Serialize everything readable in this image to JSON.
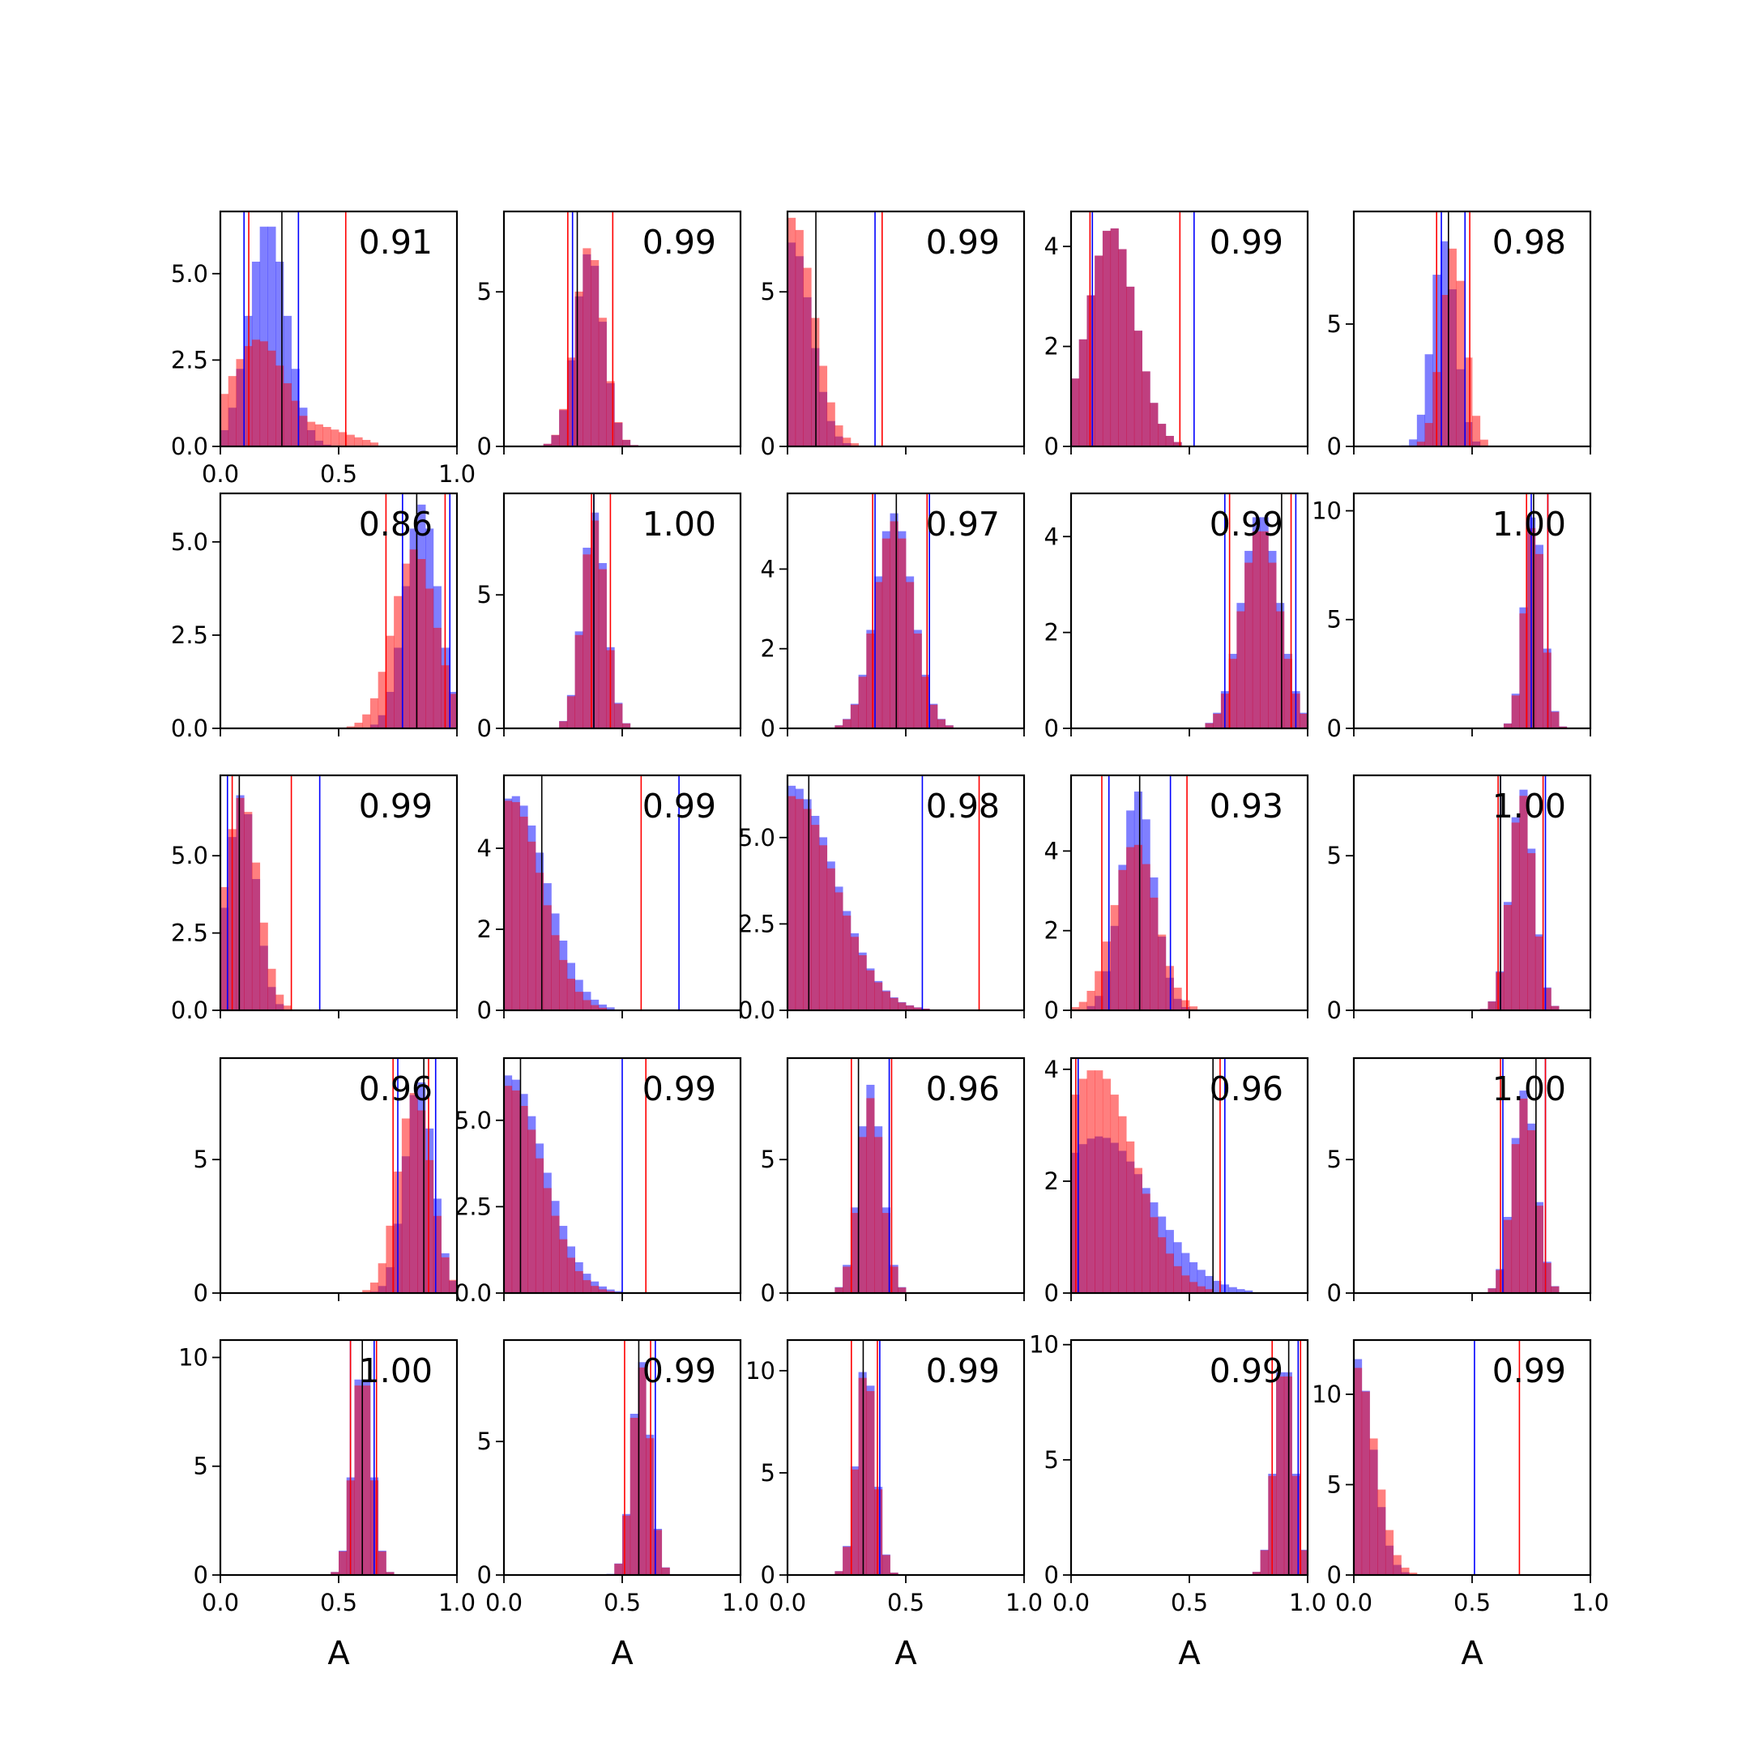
{
  "figure": {
    "rows": 5,
    "cols": 5,
    "xlabel": "A",
    "colors": {
      "blue": "#0000ff",
      "red": "#ff0000",
      "black": "#000000"
    }
  },
  "chart_data": [
    {
      "type": "histogram",
      "id": "r1c1",
      "score_label": "0.91",
      "xlim": [
        0,
        1
      ],
      "ylim": [
        0,
        6.8
      ],
      "yticks": [
        0,
        2.5,
        5
      ],
      "ytick_labels": [
        "0.0",
        "2.5",
        "5.0"
      ],
      "xtick_labels": [
        "0.0",
        "0.5",
        "1.0"
      ],
      "blue": {
        "peak": 0.2,
        "spread": 0.08,
        "height": 6.5
      },
      "red": {
        "peak": 0.16,
        "spread": 0.12,
        "height": 3.1
      },
      "red_tail": {
        "start": 0.3,
        "end": 0.7,
        "height": 0.9
      },
      "vlines": {
        "blue": [
          0.1,
          0.33
        ],
        "red": [
          0.12,
          0.53
        ],
        "black": [
          0.26
        ]
      }
    },
    {
      "type": "histogram",
      "id": "r1c2",
      "score_label": "0.99",
      "xlim": [
        0,
        1
      ],
      "ylim": [
        0,
        7.6
      ],
      "yticks": [
        0,
        5
      ],
      "ytick_labels": [
        "0",
        "5"
      ],
      "xtick_labels": [],
      "blue": {
        "peak": 0.36,
        "spread": 0.06,
        "height": 6.3
      },
      "red": {
        "peak": 0.36,
        "spread": 0.06,
        "height": 6.5
      },
      "vlines": {
        "blue": [
          0.29
        ],
        "red": [
          0.27,
          0.46
        ],
        "black": [
          0.31
        ]
      }
    },
    {
      "type": "histogram",
      "id": "r1c3",
      "score_label": "0.99",
      "xlim": [
        0,
        1
      ],
      "ylim": [
        0,
        7.6
      ],
      "yticks": [
        0,
        5
      ],
      "ytick_labels": [
        "0",
        "5"
      ],
      "xtick_labels": [],
      "blue": {
        "peak": 0.02,
        "spread": 0.08,
        "height": 6.6
      },
      "red": {
        "peak": 0.02,
        "spread": 0.09,
        "height": 7.4
      },
      "vlines": {
        "blue": [
          0.37
        ],
        "red": [
          0.4
        ],
        "black": [
          0.12
        ]
      }
    },
    {
      "type": "histogram",
      "id": "r1c4",
      "score_label": "0.99",
      "xlim": [
        0,
        1
      ],
      "ylim": [
        0,
        4.7
      ],
      "yticks": [
        0,
        2,
        4
      ],
      "ytick_labels": [
        "0",
        "2",
        "4"
      ],
      "xtick_labels": [],
      "blue": {
        "peak": 0.17,
        "spread": 0.1,
        "height": 4.4
      },
      "red": {
        "peak": 0.17,
        "spread": 0.1,
        "height": 4.4
      },
      "vlines": {
        "blue": [
          0.09,
          0.52
        ],
        "red": [
          0.08,
          0.46
        ],
        "black": []
      }
    },
    {
      "type": "histogram",
      "id": "r1c5",
      "score_label": "0.98",
      "xlim": [
        0,
        1
      ],
      "ylim": [
        0,
        9.6
      ],
      "yticks": [
        0,
        5
      ],
      "ytick_labels": [
        "0",
        "5"
      ],
      "xtick_labels": [],
      "blue": {
        "peak": 0.38,
        "spread": 0.05,
        "height": 8.4
      },
      "red": {
        "peak": 0.42,
        "spread": 0.05,
        "height": 8.1
      },
      "vlines": {
        "blue": [
          0.37,
          0.47
        ],
        "red": [
          0.35,
          0.49
        ],
        "black": [
          0.4
        ]
      }
    },
    {
      "type": "histogram",
      "id": "r2c1",
      "score_label": "0.86",
      "xlim": [
        0,
        1
      ],
      "ylim": [
        0,
        6.3
      ],
      "yticks": [
        0,
        2.5,
        5
      ],
      "ytick_labels": [
        "0.0",
        "2.5",
        "5.0"
      ],
      "xtick_labels": [],
      "blue": {
        "peak": 0.85,
        "spread": 0.07,
        "height": 6.0
      },
      "red": {
        "peak": 0.82,
        "spread": 0.09,
        "height": 4.8
      },
      "vlines": {
        "blue": [
          0.77,
          0.97
        ],
        "red": [
          0.7,
          0.95
        ],
        "black": [
          0.83
        ]
      }
    },
    {
      "type": "histogram",
      "id": "r2c2",
      "score_label": "1.00",
      "xlim": [
        0,
        1
      ],
      "ylim": [
        0,
        8.8
      ],
      "yticks": [
        0,
        5
      ],
      "ytick_labels": [
        "0",
        "5"
      ],
      "xtick_labels": [],
      "blue": {
        "peak": 0.38,
        "spread": 0.05,
        "height": 8.1
      },
      "red": {
        "peak": 0.38,
        "spread": 0.05,
        "height": 7.8
      },
      "vlines": {
        "blue": [
          0.38
        ],
        "red": [
          0.37,
          0.45
        ],
        "black": [
          0.38
        ]
      }
    },
    {
      "type": "histogram",
      "id": "r2c3",
      "score_label": "0.97",
      "xlim": [
        0,
        1
      ],
      "ylim": [
        0,
        5.9
      ],
      "yticks": [
        0,
        2,
        4
      ],
      "ytick_labels": [
        "0",
        "2",
        "4"
      ],
      "xtick_labels": [],
      "blue": {
        "peak": 0.45,
        "spread": 0.08,
        "height": 5.4
      },
      "red": {
        "peak": 0.45,
        "spread": 0.08,
        "height": 5.2
      },
      "vlines": {
        "blue": [
          0.37,
          0.6
        ],
        "red": [
          0.36,
          0.59
        ],
        "black": [
          0.46
        ]
      }
    },
    {
      "type": "histogram",
      "id": "r2c4",
      "score_label": "0.99",
      "xlim": [
        0,
        1
      ],
      "ylim": [
        0,
        4.9
      ],
      "yticks": [
        0,
        2,
        4
      ],
      "ytick_labels": [
        "0",
        "2",
        "4"
      ],
      "xtick_labels": [],
      "blue": {
        "peak": 0.8,
        "spread": 0.08,
        "height": 4.5
      },
      "red": {
        "peak": 0.8,
        "spread": 0.08,
        "height": 4.2
      },
      "vlines": {
        "blue": [
          0.65,
          0.95
        ],
        "red": [
          0.67,
          0.93
        ],
        "black": [
          0.89
        ]
      }
    },
    {
      "type": "histogram",
      "id": "r2c5",
      "score_label": "1.00",
      "xlim": [
        0,
        1
      ],
      "ylim": [
        0,
        10.8
      ],
      "yticks": [
        0,
        5,
        10
      ],
      "ytick_labels": [
        "0",
        "5",
        "10"
      ],
      "xtick_labels": [],
      "blue": {
        "peak": 0.76,
        "spread": 0.04,
        "height": 10.0
      },
      "red": {
        "peak": 0.76,
        "spread": 0.04,
        "height": 9.5
      },
      "vlines": {
        "blue": [
          0.75,
          0.82
        ],
        "red": [
          0.73,
          0.82
        ],
        "black": [
          0.76
        ]
      }
    },
    {
      "type": "histogram",
      "id": "r3c1",
      "score_label": "0.99",
      "xlim": [
        0,
        1
      ],
      "ylim": [
        0,
        7.6
      ],
      "yticks": [
        0,
        2.5,
        5
      ],
      "ytick_labels": [
        "0.0",
        "2.5",
        "5.0"
      ],
      "xtick_labels": [],
      "blue": {
        "peak": 0.09,
        "spread": 0.06,
        "height": 7.0
      },
      "red": {
        "peak": 0.09,
        "spread": 0.07,
        "height": 6.9
      },
      "vlines": {
        "blue": [
          0.03,
          0.42
        ],
        "red": [
          0.05,
          0.3
        ],
        "black": [
          0.08
        ]
      }
    },
    {
      "type": "histogram",
      "id": "r3c2",
      "score_label": "0.99",
      "xlim": [
        0,
        1
      ],
      "ylim": [
        0,
        5.8
      ],
      "yticks": [
        0,
        2,
        4
      ],
      "ytick_labels": [
        "0",
        "2",
        "4"
      ],
      "xtick_labels": [],
      "blue": {
        "peak": 0.04,
        "spread": 0.14,
        "height": 5.3
      },
      "red": {
        "peak": 0.03,
        "spread": 0.13,
        "height": 5.2
      },
      "vlines": {
        "blue": [
          0.74
        ],
        "red": [
          0.58
        ],
        "black": [
          0.16
        ]
      }
    },
    {
      "type": "histogram",
      "id": "r3c3",
      "score_label": "0.98",
      "xlim": [
        0,
        1
      ],
      "ylim": [
        0,
        6.8
      ],
      "yticks": [
        0,
        2.5,
        5
      ],
      "ytick_labels": [
        "0.0",
        "2.5",
        "5.0"
      ],
      "xtick_labels": [],
      "blue": {
        "peak": 0.02,
        "spread": 0.18,
        "height": 6.5
      },
      "red": {
        "peak": 0.02,
        "spread": 0.18,
        "height": 6.2
      },
      "vlines": {
        "blue": [
          0.57
        ],
        "red": [
          0.81
        ],
        "black": [
          0.09
        ]
      }
    },
    {
      "type": "histogram",
      "id": "r3c4",
      "score_label": "0.93",
      "xlim": [
        0,
        1
      ],
      "ylim": [
        0,
        5.9
      ],
      "yticks": [
        0,
        2,
        4
      ],
      "ytick_labels": [
        "0",
        "2",
        "4"
      ],
      "xtick_labels": [],
      "blue": {
        "peak": 0.28,
        "spread": 0.07,
        "height": 5.5
      },
      "red": {
        "peak": 0.27,
        "spread": 0.09,
        "height": 4.2
      },
      "vlines": {
        "blue": [
          0.16,
          0.42
        ],
        "red": [
          0.13,
          0.49
        ],
        "black": [
          0.29
        ]
      }
    },
    {
      "type": "histogram",
      "id": "r3c5",
      "score_label": "1.00",
      "xlim": [
        0,
        1
      ],
      "ylim": [
        0,
        7.6
      ],
      "yticks": [
        0,
        5
      ],
      "ytick_labels": [
        "0",
        "5"
      ],
      "xtick_labels": [],
      "blue": {
        "peak": 0.71,
        "spread": 0.05,
        "height": 7.2
      },
      "red": {
        "peak": 0.71,
        "spread": 0.05,
        "height": 7.0
      },
      "vlines": {
        "blue": [
          0.62,
          0.81
        ],
        "red": [
          0.61,
          0.8
        ],
        "black": [
          0.62
        ]
      }
    },
    {
      "type": "histogram",
      "id": "r4c1",
      "score_label": "0.96",
      "xlim": [
        0,
        1
      ],
      "ylim": [
        0,
        8.8
      ],
      "yticks": [
        0,
        5
      ],
      "ytick_labels": [
        "0",
        "5"
      ],
      "xtick_labels": [],
      "blue": {
        "peak": 0.84,
        "spread": 0.06,
        "height": 8.0
      },
      "red": {
        "peak": 0.82,
        "spread": 0.07,
        "height": 7.5
      },
      "vlines": {
        "blue": [
          0.75,
          0.91
        ],
        "red": [
          0.73,
          0.88
        ],
        "black": [
          0.86
        ]
      }
    },
    {
      "type": "histogram",
      "id": "r4c2",
      "score_label": "0.99",
      "xlim": [
        0,
        1
      ],
      "ylim": [
        0,
        6.8
      ],
      "yticks": [
        0,
        2.5,
        5
      ],
      "ytick_labels": [
        "0.0",
        "2.5",
        "5.0"
      ],
      "xtick_labels": [],
      "blue": {
        "peak": 0.02,
        "spread": 0.15,
        "height": 6.3
      },
      "red": {
        "peak": 0.02,
        "spread": 0.14,
        "height": 6.0
      },
      "vlines": {
        "blue": [
          0.5
        ],
        "red": [
          0.6
        ],
        "black": [
          0.07
        ]
      }
    },
    {
      "type": "histogram",
      "id": "r4c3",
      "score_label": "0.96",
      "xlim": [
        0,
        1
      ],
      "ylim": [
        0,
        8.8
      ],
      "yticks": [
        0,
        5
      ],
      "ytick_labels": [
        "0",
        "5"
      ],
      "xtick_labels": [],
      "blue": {
        "peak": 0.35,
        "spread": 0.05,
        "height": 7.8
      },
      "red": {
        "peak": 0.35,
        "spread": 0.05,
        "height": 7.3
      },
      "vlines": {
        "blue": [
          0.43
        ],
        "red": [
          0.27,
          0.44
        ],
        "black": [
          0.3
        ]
      }
    },
    {
      "type": "histogram",
      "id": "r4c4",
      "score_label": "0.96",
      "xlim": [
        0,
        1
      ],
      "ylim": [
        0,
        4.2
      ],
      "yticks": [
        0,
        2,
        4
      ],
      "ytick_labels": [
        "0",
        "2",
        "4"
      ],
      "xtick_labels": [],
      "blue": {
        "peak": 0.12,
        "spread": 0.22,
        "height": 2.8
      },
      "red": {
        "peak": 0.1,
        "spread": 0.17,
        "height": 4.0
      },
      "vlines": {
        "blue": [
          0.03,
          0.65
        ],
        "red": [
          0.02,
          0.63
        ],
        "black": [
          0.6
        ]
      }
    },
    {
      "type": "histogram",
      "id": "r4c5",
      "score_label": "1.00",
      "xlim": [
        0,
        1
      ],
      "ylim": [
        0,
        8.8
      ],
      "yticks": [
        0,
        5
      ],
      "ytick_labels": [
        "0",
        "5"
      ],
      "xtick_labels": [],
      "blue": {
        "peak": 0.72,
        "spread": 0.05,
        "height": 7.6
      },
      "red": {
        "peak": 0.72,
        "spread": 0.05,
        "height": 7.3
      },
      "vlines": {
        "blue": [
          0.63,
          0.81
        ],
        "red": [
          0.62,
          0.81
        ],
        "black": [
          0.77
        ]
      }
    },
    {
      "type": "histogram",
      "id": "r5c1",
      "score_label": "1.00",
      "xlim": [
        0,
        1
      ],
      "ylim": [
        0,
        10.8
      ],
      "yticks": [
        0,
        5,
        10
      ],
      "ytick_labels": [
        "0",
        "5",
        "10"
      ],
      "xtick_labels": [
        "0.0",
        "0.5",
        "1.0"
      ],
      "blue": {
        "peak": 0.6,
        "spread": 0.04,
        "height": 9.8
      },
      "red": {
        "peak": 0.6,
        "spread": 0.04,
        "height": 9.5
      },
      "vlines": {
        "blue": [
          0.55,
          0.65
        ],
        "red": [
          0.55,
          0.66
        ],
        "black": [
          0.6
        ]
      }
    },
    {
      "type": "histogram",
      "id": "r5c2",
      "score_label": "0.99",
      "xlim": [
        0,
        1
      ],
      "ylim": [
        0,
        8.8
      ],
      "yticks": [
        0,
        5
      ],
      "ytick_labels": [
        "0",
        "5"
      ],
      "xtick_labels": [
        "0.0",
        "0.5",
        "1.0"
      ],
      "blue": {
        "peak": 0.58,
        "spread": 0.04,
        "height": 8.0
      },
      "red": {
        "peak": 0.58,
        "spread": 0.04,
        "height": 7.8
      },
      "vlines": {
        "blue": [
          0.64
        ],
        "red": [
          0.51,
          0.62
        ],
        "black": [
          0.57
        ]
      }
    },
    {
      "type": "histogram",
      "id": "r5c3",
      "score_label": "0.99",
      "xlim": [
        0,
        1
      ],
      "ylim": [
        0,
        11.5
      ],
      "yticks": [
        0,
        5,
        10
      ],
      "ytick_labels": [
        "0",
        "5",
        "10"
      ],
      "xtick_labels": [
        "0.0",
        "0.5",
        "1.0"
      ],
      "blue": {
        "peak": 0.33,
        "spread": 0.04,
        "height": 10.5
      },
      "red": {
        "peak": 0.33,
        "spread": 0.04,
        "height": 10.2
      },
      "vlines": {
        "blue": [
          0.39
        ],
        "red": [
          0.27,
          0.38
        ],
        "black": [
          0.32
        ]
      }
    },
    {
      "type": "histogram",
      "id": "r5c4",
      "score_label": "0.99",
      "xlim": [
        0,
        1
      ],
      "ylim": [
        0,
        10.2
      ],
      "yticks": [
        0,
        5,
        10
      ],
      "ytick_labels": [
        "0",
        "5",
        "10"
      ],
      "xtick_labels": [
        "0.0",
        "0.5",
        "1.0"
      ],
      "blue": {
        "peak": 0.9,
        "spread": 0.04,
        "height": 9.6
      },
      "red": {
        "peak": 0.9,
        "spread": 0.04,
        "height": 9.4
      },
      "vlines": {
        "blue": [
          0.96
        ],
        "red": [
          0.85,
          0.97
        ],
        "black": [
          0.92
        ]
      }
    },
    {
      "type": "histogram",
      "id": "r5c5",
      "score_label": "0.99",
      "xlim": [
        0,
        1
      ],
      "ylim": [
        0,
        13.0
      ],
      "yticks": [
        0,
        5,
        10
      ],
      "ytick_labels": [
        "0",
        "5",
        "10"
      ],
      "xtick_labels": [
        "0.0",
        "0.5",
        "1.0"
      ],
      "blue": {
        "peak": 0.01,
        "spread": 0.07,
        "height": 12.0
      },
      "red": {
        "peak": 0.01,
        "spread": 0.08,
        "height": 11.5
      },
      "vlines": {
        "blue": [
          0.51
        ],
        "red": [
          0.7
        ],
        "black": []
      }
    }
  ]
}
